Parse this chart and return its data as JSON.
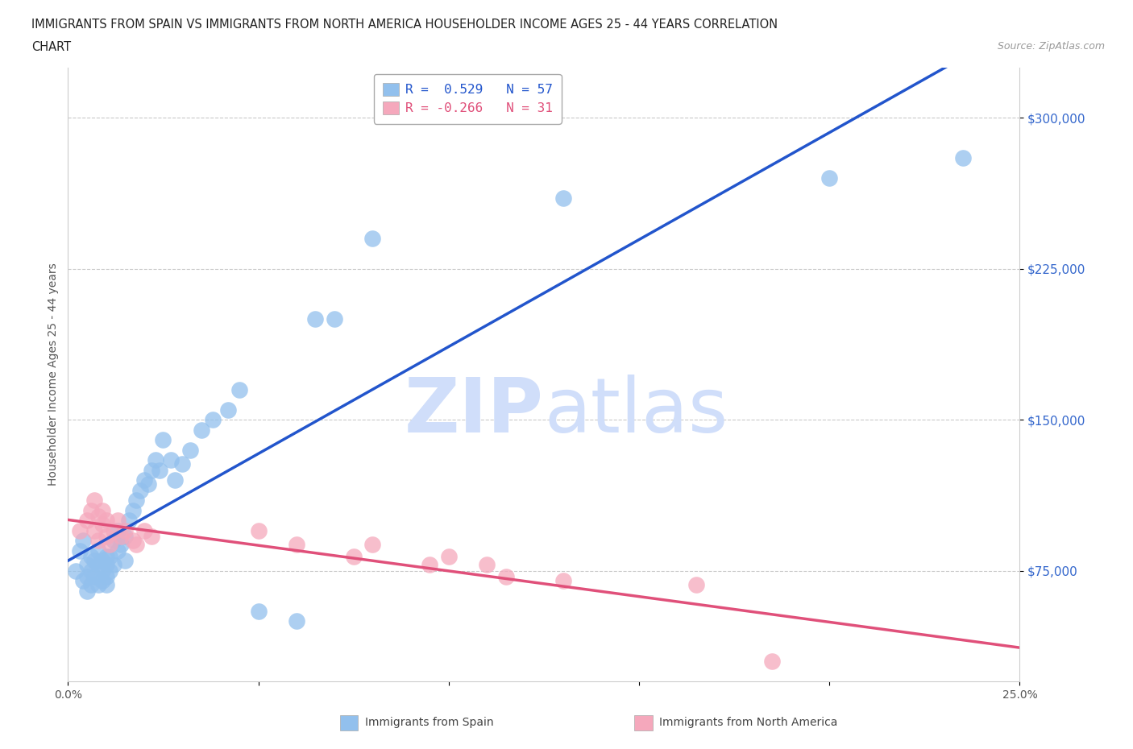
{
  "title_line1": "IMMIGRANTS FROM SPAIN VS IMMIGRANTS FROM NORTH AMERICA HOUSEHOLDER INCOME AGES 25 - 44 YEARS CORRELATION",
  "title_line2": "CHART",
  "source": "Source: ZipAtlas.com",
  "ylabel": "Householder Income Ages 25 - 44 years",
  "xlim": [
    0.0,
    0.25
  ],
  "ylim": [
    20000,
    325000
  ],
  "yticks": [
    75000,
    150000,
    225000,
    300000
  ],
  "ytick_labels": [
    "$75,000",
    "$150,000",
    "$225,000",
    "$300,000"
  ],
  "xticks": [
    0.0,
    0.05,
    0.1,
    0.15,
    0.2,
    0.25
  ],
  "xtick_labels": [
    "0.0%",
    "",
    "",
    "",
    "",
    "25.0%"
  ],
  "R_spain": 0.529,
  "N_spain": 57,
  "R_north_america": -0.266,
  "N_north_america": 31,
  "spain_color": "#92C0ED",
  "spain_line_color": "#2255CC",
  "north_america_color": "#F5A8BC",
  "north_america_line_color": "#E0507A",
  "watermark_color": "#D0DEFA",
  "legend_label_spain": "R =  0.529   N = 57",
  "legend_label_na": "R = -0.266   N = 31",
  "bottom_label_spain": "Immigrants from Spain",
  "bottom_label_na": "Immigrants from North America",
  "spain_x": [
    0.002,
    0.003,
    0.004,
    0.004,
    0.005,
    0.005,
    0.005,
    0.006,
    0.006,
    0.006,
    0.007,
    0.007,
    0.008,
    0.008,
    0.008,
    0.009,
    0.009,
    0.009,
    0.01,
    0.01,
    0.01,
    0.01,
    0.011,
    0.011,
    0.012,
    0.012,
    0.013,
    0.013,
    0.014,
    0.015,
    0.015,
    0.016,
    0.017,
    0.018,
    0.019,
    0.02,
    0.021,
    0.022,
    0.023,
    0.024,
    0.025,
    0.027,
    0.028,
    0.03,
    0.032,
    0.035,
    0.038,
    0.042,
    0.045,
    0.05,
    0.06,
    0.065,
    0.07,
    0.08,
    0.13,
    0.2,
    0.235
  ],
  "spain_y": [
    75000,
    85000,
    70000,
    90000,
    72000,
    78000,
    65000,
    75000,
    68000,
    82000,
    80000,
    72000,
    78000,
    68000,
    85000,
    75000,
    80000,
    70000,
    72000,
    78000,
    82000,
    68000,
    75000,
    82000,
    90000,
    78000,
    85000,
    95000,
    88000,
    92000,
    80000,
    100000,
    105000,
    110000,
    115000,
    120000,
    118000,
    125000,
    130000,
    125000,
    140000,
    130000,
    120000,
    128000,
    135000,
    145000,
    150000,
    155000,
    165000,
    55000,
    50000,
    200000,
    200000,
    240000,
    260000,
    270000,
    280000
  ],
  "na_x": [
    0.003,
    0.005,
    0.006,
    0.007,
    0.007,
    0.008,
    0.008,
    0.009,
    0.009,
    0.01,
    0.01,
    0.011,
    0.012,
    0.013,
    0.014,
    0.015,
    0.017,
    0.018,
    0.02,
    0.022,
    0.05,
    0.06,
    0.075,
    0.08,
    0.095,
    0.1,
    0.11,
    0.115,
    0.13,
    0.165,
    0.185
  ],
  "na_y": [
    95000,
    100000,
    105000,
    95000,
    110000,
    102000,
    90000,
    98000,
    105000,
    92000,
    100000,
    88000,
    95000,
    100000,
    92000,
    95000,
    90000,
    88000,
    95000,
    92000,
    95000,
    88000,
    82000,
    88000,
    78000,
    82000,
    78000,
    72000,
    70000,
    68000,
    30000
  ]
}
